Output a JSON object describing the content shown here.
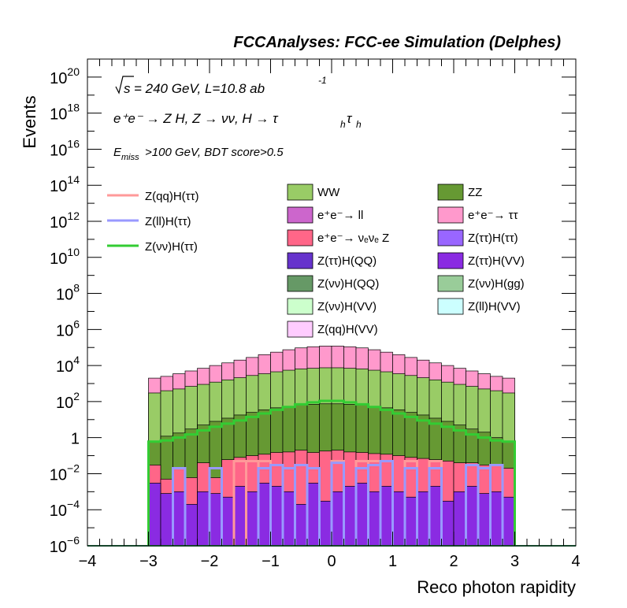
{
  "header": {
    "title": "FCCAnalyses: FCC-ee Simulation (Delphes)",
    "energy": "= 240 GeV, L=10.8 ab",
    "energy_sqrt": "s",
    "energy_exp": "-1",
    "process": "e⁺e⁻ → Z H, Z → νν, H → τ",
    "process_sub": "h",
    "process_tail": "τ",
    "cut": "E",
    "cut_sub": "miss",
    "cut_tail": ">100 GeV, BDT score>0.5"
  },
  "chart_data": {
    "type": "stacked-histogram",
    "xlabel": "Reco photon rapidity",
    "ylabel": "Events",
    "xlim": [
      -4,
      4
    ],
    "ylim": [
      1e-06,
      1e+21
    ],
    "yscale": "log",
    "x_ticks": [
      "−4",
      "−3",
      "−2",
      "−1",
      "0",
      "1",
      "2",
      "3",
      "4"
    ],
    "y_ticks": [
      {
        "value": 1e-06,
        "base": "10",
        "exp": "−6"
      },
      {
        "value": 0.0001,
        "base": "10",
        "exp": "−4"
      },
      {
        "value": 0.01,
        "base": "10",
        "exp": "−2"
      },
      {
        "value": 1,
        "base": "1",
        "exp": ""
      },
      {
        "value": 100.0,
        "base": "10",
        "exp": "2"
      },
      {
        "value": 10000.0,
        "base": "10",
        "exp": "4"
      },
      {
        "value": 1000000.0,
        "base": "10",
        "exp": "6"
      },
      {
        "value": 100000000.0,
        "base": "10",
        "exp": "8"
      },
      {
        "value": 10000000000.0,
        "base": "10",
        "exp": "10"
      },
      {
        "value": 1000000000000.0,
        "base": "10",
        "exp": "12"
      },
      {
        "value": 100000000000000.0,
        "base": "10",
        "exp": "14"
      },
      {
        "value": 1e+16,
        "base": "10",
        "exp": "16"
      },
      {
        "value": 1e+18,
        "base": "10",
        "exp": "18"
      },
      {
        "value": 1e+20,
        "base": "10",
        "exp": "20"
      }
    ],
    "bin_edges": [
      -3.0,
      -2.8,
      -2.6,
      -2.4,
      -2.2,
      -2.0,
      -1.8,
      -1.6,
      -1.4,
      -1.2,
      -1.0,
      -0.8,
      -0.6,
      -0.4,
      -0.2,
      0.0,
      0.2,
      0.4,
      0.6,
      0.8,
      1.0,
      1.2,
      1.4,
      1.6,
      1.8,
      2.0,
      2.2,
      2.4,
      2.6,
      2.8,
      3.0
    ],
    "stack_totals": [
      {
        "name": "Z(ττ)H(VV)",
        "color": "#8a2be2",
        "values": [
          0.003,
          0.0008,
          0.001,
          0.0002,
          0.001,
          0.0008,
          0.0005,
          0.002,
          0.001,
          0.003,
          0.002,
          0.001,
          0.0002,
          0.003,
          0.0003,
          0.001,
          0.002,
          0.003,
          0.001,
          0.002,
          0.001,
          0.0005,
          0.001,
          0.002,
          0.0003,
          0.001,
          0.002,
          0.0008,
          0.001,
          0.0005
        ]
      },
      {
        "name": "e⁺e⁻ → ν_e ν_e Z",
        "color": "#ff6688",
        "values": [
          0.03,
          0.005,
          0.02,
          0.006,
          0.04,
          0.006,
          0.06,
          0.08,
          0.1,
          0.12,
          0.15,
          0.16,
          0.2,
          0.15,
          0.18,
          0.2,
          0.16,
          0.15,
          0.13,
          0.12,
          0.1,
          0.08,
          0.07,
          0.06,
          0.05,
          0.04,
          0.04,
          0.03,
          0.03,
          0.02
        ]
      },
      {
        "name": "ZZ",
        "color": "#669933",
        "values": [
          0.6,
          1.2,
          1.8,
          3,
          5,
          8,
          12,
          18,
          25,
          35,
          45,
          55,
          65,
          70,
          75,
          75,
          70,
          65,
          55,
          45,
          35,
          25,
          18,
          12,
          8,
          5,
          3,
          2,
          1,
          0.6
        ]
      },
      {
        "name": "WW",
        "color": "#99cc66",
        "values": [
          300,
          400,
          500,
          700,
          900,
          1200,
          1600,
          2100,
          2800,
          3500,
          4500,
          5500,
          6500,
          7000,
          7500,
          7500,
          7000,
          6500,
          5500,
          4500,
          3500,
          2800,
          2100,
          1600,
          1200,
          900,
          700,
          500,
          400,
          300
        ]
      },
      {
        "name": "e⁺e⁻ → ττ",
        "color": "#ff99cc",
        "values": [
          2000,
          2500,
          3500,
          5000,
          7000,
          10000,
          14000,
          20000,
          28000,
          40000,
          55000,
          75000,
          95000,
          110000,
          120000,
          120000,
          110000,
          95000,
          75000,
          55000,
          40000,
          28000,
          20000,
          14000,
          10000,
          7000,
          5000,
          3500,
          2500,
          2000
        ]
      }
    ],
    "overlay_lines": [
      {
        "name": "Z(qq)H(ττ)",
        "color": "#ff9999",
        "values": [
          null,
          null,
          null,
          null,
          null,
          null,
          null,
          0.05,
          0.05,
          0.05,
          null,
          null,
          null,
          null,
          null,
          0.05,
          null,
          0.05,
          0.05,
          null,
          null,
          0.05,
          null,
          0.05,
          null,
          null,
          null,
          null,
          null,
          null
        ]
      },
      {
        "name": "Z(ll)H(ττ)",
        "color": "#9999ff",
        "values": [
          null,
          null,
          0.02,
          null,
          null,
          0.02,
          null,
          null,
          null,
          0.02,
          0.03,
          0.02,
          0.03,
          0.02,
          null,
          0.04,
          null,
          0.02,
          0.03,
          0.05,
          null,
          0.02,
          null,
          0.02,
          null,
          null,
          0.03,
          0.02,
          0.03,
          null
        ]
      },
      {
        "name": "Z(νν)H(ττ)",
        "color": "#33cc33",
        "values": [
          0.6,
          0.7,
          1.0,
          1.5,
          2.5,
          4,
          6,
          9,
          14,
          22,
          35,
          50,
          70,
          90,
          110,
          110,
          90,
          70,
          50,
          35,
          22,
          14,
          9,
          6,
          4,
          2.5,
          1.5,
          1.0,
          0.7,
          0.6
        ]
      }
    ],
    "legend_lines": [
      {
        "label": "Z(qq)H(ττ)",
        "color": "#ff9999"
      },
      {
        "label": "Z(ll)H(ττ)",
        "color": "#9999ff"
      },
      {
        "label": "Z(νν)H(ττ)",
        "color": "#33cc33"
      }
    ],
    "legend_boxes": [
      {
        "label": "WW",
        "color": "#99cc66"
      },
      {
        "label": "ZZ",
        "color": "#669933"
      },
      {
        "label": "e⁺e⁻→ ll",
        "color": "#cc66cc"
      },
      {
        "label": "e⁺e⁻→ ττ",
        "color": "#ff99cc"
      },
      {
        "label": "e⁺e⁻→ νₑνₑ Z",
        "color": "#ff6688"
      },
      {
        "label": "Z(ττ)H(ττ)",
        "color": "#9966ff"
      },
      {
        "label": "Z(ττ)H(QQ)",
        "color": "#6633cc"
      },
      {
        "label": "Z(ττ)H(VV)",
        "color": "#8a2be2"
      },
      {
        "label": "Z(νν)H(QQ)",
        "color": "#669966"
      },
      {
        "label": "Z(νν)H(gg)",
        "color": "#99cc99"
      },
      {
        "label": "Z(νν)H(VV)",
        "color": "#ccffcc"
      },
      {
        "label": "Z(ll)H(VV)",
        "color": "#ccffff"
      },
      {
        "label": "Z(qq)H(VV)",
        "color": "#ffccff"
      }
    ]
  }
}
